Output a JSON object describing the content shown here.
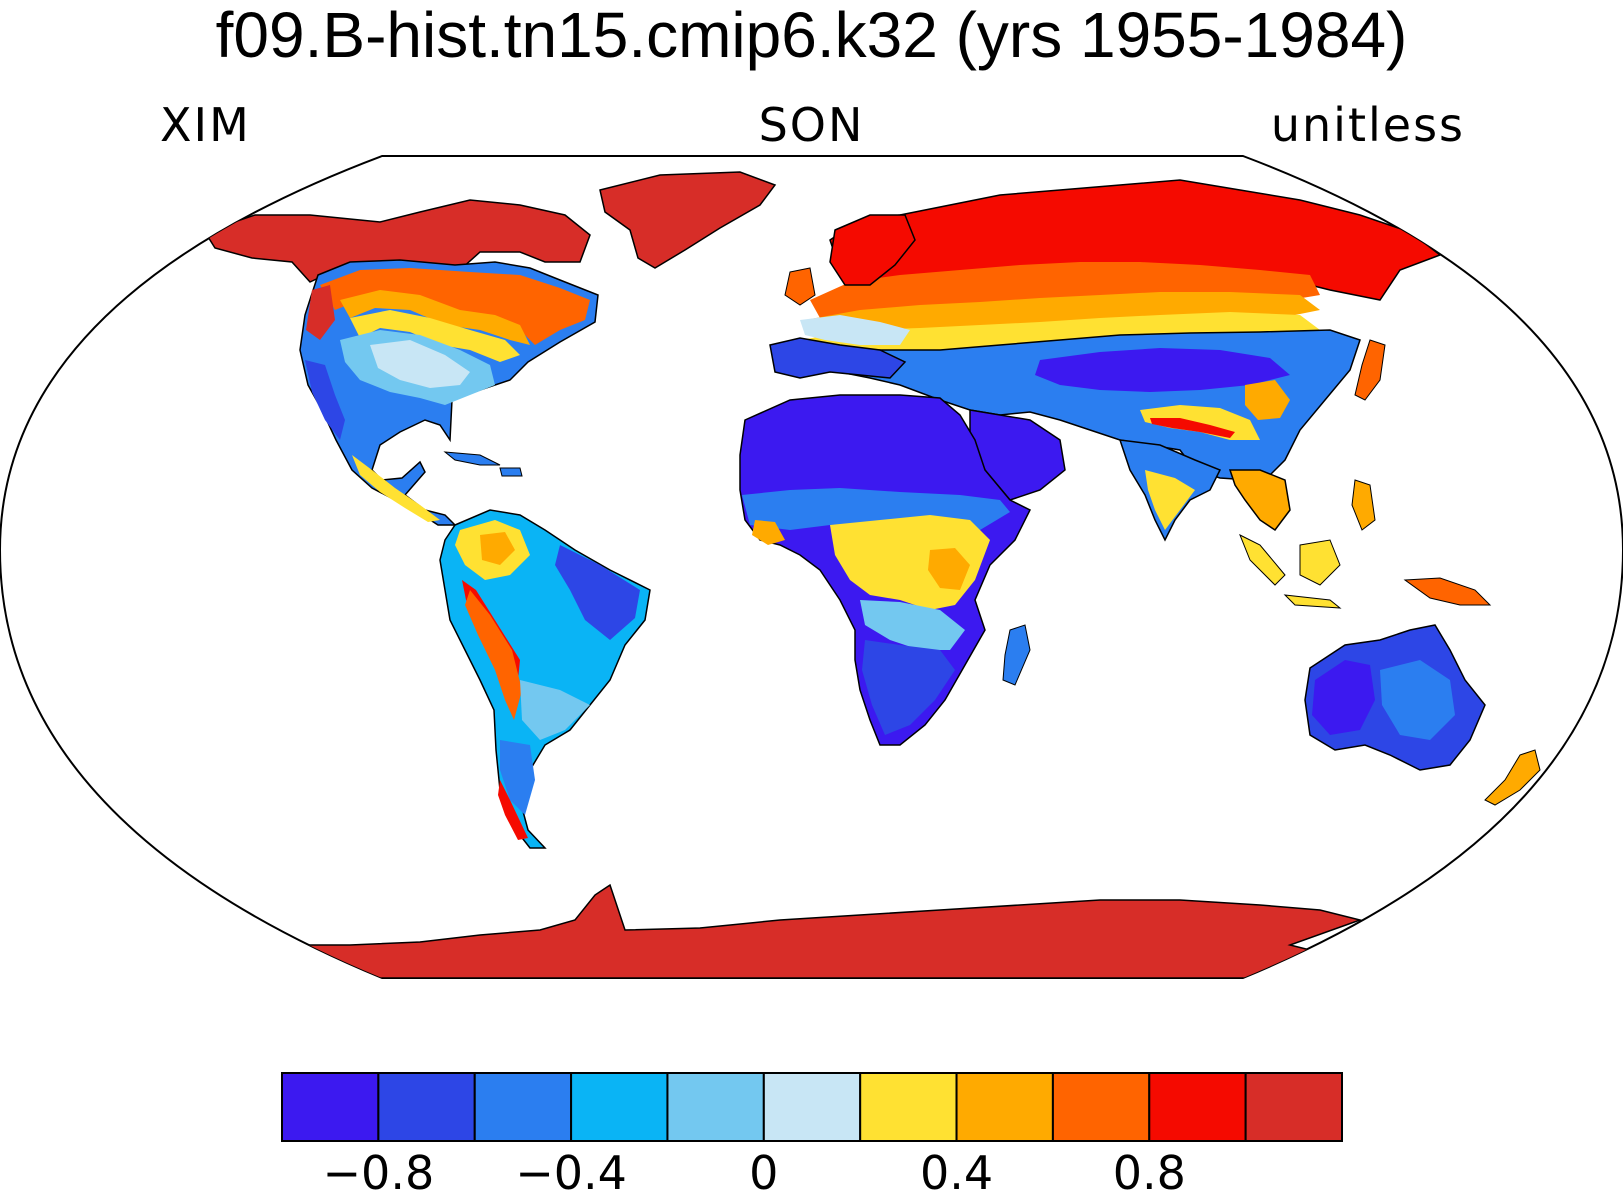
{
  "title": "f09.B-hist.tn15.cmip6.k32 (yrs 1955-1984)",
  "subtitle": {
    "left": "XIM",
    "center": "SON",
    "right": "unitless"
  },
  "colorbar": {
    "colors": [
      "#3c19f0",
      "#2d46e6",
      "#2b7ef0",
      "#0ab4f5",
      "#73c8f0",
      "#c8e6f5",
      "#ffe132",
      "#ffaa00",
      "#ff6400",
      "#f50a00",
      "#d72d28"
    ],
    "tick_labels": [
      "−0.8",
      "−0.4",
      "0",
      "0.4",
      "0.8"
    ]
  },
  "icons": {
    "map": "world-map-robinson",
    "colorbar": "colorbar"
  }
}
